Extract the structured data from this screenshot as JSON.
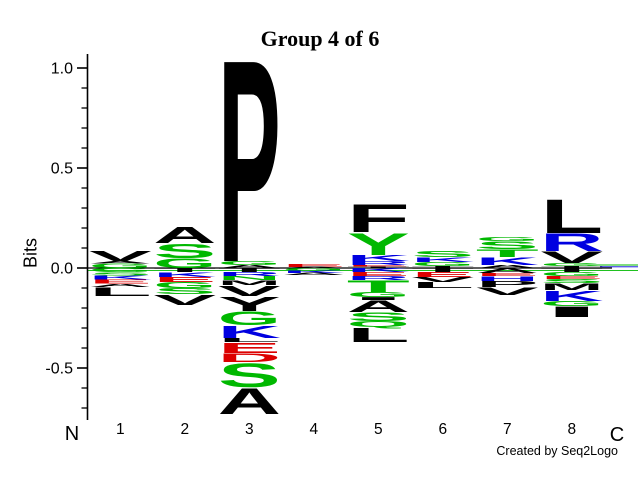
{
  "title": "Group 4 of 6",
  "credit": "Created by Seq2Logo",
  "axis": {
    "ylabel": "Bits",
    "n_label": "N",
    "c_label": "C"
  },
  "chart_data": {
    "type": "sequence-logo",
    "title": "Group 4 of 6",
    "ylabel": "Bits",
    "xlabel_left": "N",
    "xlabel_right": "C",
    "ylim": [
      -0.76,
      1.06
    ],
    "x_positions": [
      "1",
      "2",
      "3",
      "4",
      "5",
      "6",
      "7",
      "8"
    ],
    "yticks_major": [
      {
        "v": 1.0,
        "label": "1.0"
      },
      {
        "v": 0.5,
        "label": "0.5"
      },
      {
        "v": 0.0,
        "label": "0.0"
      },
      {
        "v": -0.5,
        "label": "-0.5"
      }
    ],
    "yticks_minor": [
      0.9,
      0.8,
      0.7,
      0.6,
      0.4,
      0.3,
      0.2,
      0.1,
      -0.1,
      -0.2,
      -0.3,
      -0.4,
      -0.6,
      -0.7
    ],
    "colors": {
      "k": "#000000",
      "g": "#00b800",
      "b": "#0000e0",
      "r": "#dc0000"
    },
    "letter_format": [
      "residue",
      "color_key",
      "height_bits"
    ],
    "positions": [
      {
        "position": "1",
        "above": [
          [
            "V",
            "k",
            0.055
          ],
          [
            "A",
            "k",
            0.012
          ],
          [
            "G",
            "g",
            0.022
          ]
        ],
        "below": [
          [
            "G",
            "g",
            0.02
          ],
          [
            "S",
            "g",
            0.018
          ],
          [
            "K",
            "b",
            0.02
          ],
          [
            "E",
            "r",
            0.02
          ],
          [
            "A",
            "k",
            0.018
          ],
          [
            "L",
            "k",
            0.044
          ]
        ]
      },
      {
        "position": "2",
        "above": [
          [
            "A",
            "k",
            0.085
          ],
          [
            "S",
            "g",
            0.075
          ],
          [
            "G",
            "g",
            0.05
          ]
        ],
        "below": [
          [
            "T",
            "k",
            0.02
          ],
          [
            "K",
            "b",
            0.025
          ],
          [
            "E",
            "r",
            0.025
          ],
          [
            "G",
            "g",
            0.03
          ],
          [
            "S",
            "g",
            0.03
          ],
          [
            "V",
            "k",
            0.055
          ]
        ]
      },
      {
        "position": "3",
        "above": [
          [
            "P",
            "k",
            1.055
          ],
          [
            "G",
            "g",
            0.02
          ],
          [
            "A",
            "k",
            0.015
          ]
        ],
        "below": [
          [
            "T",
            "k",
            0.02
          ],
          [
            "R",
            "b",
            0.02
          ],
          [
            "N",
            "g",
            0.02
          ],
          [
            "M",
            "k",
            0.025
          ],
          [
            "V",
            "k",
            0.055
          ],
          [
            "Y",
            "k",
            0.075
          ],
          [
            "G",
            "g",
            0.07
          ],
          [
            "K",
            "b",
            0.065
          ],
          [
            "L",
            "k",
            0.02
          ],
          [
            "E",
            "r",
            0.055
          ],
          [
            "D",
            "r",
            0.045
          ],
          [
            "S",
            "g",
            0.125
          ],
          [
            "A",
            "k",
            0.135
          ]
        ]
      },
      {
        "position": "4",
        "above": [
          [
            "E",
            "r",
            0.018
          ],
          [
            "A",
            "k",
            0.005
          ]
        ],
        "below": [
          [
            "G",
            "g",
            0.012
          ],
          [
            "K",
            "b",
            0.012
          ],
          [
            "A",
            "k",
            0.012
          ]
        ]
      },
      {
        "position": "5",
        "above": [
          [
            "F",
            "k",
            0.145
          ],
          [
            "Y",
            "g",
            0.115
          ],
          [
            "K",
            "b",
            0.03
          ],
          [
            "R",
            "b",
            0.02
          ],
          [
            "E",
            "r",
            0.008
          ],
          [
            "T",
            "k",
            0.007
          ]
        ],
        "below": [
          [
            "K",
            "b",
            0.02
          ],
          [
            "E",
            "r",
            0.02
          ],
          [
            "R",
            "b",
            0.02
          ],
          [
            "T",
            "g",
            0.06
          ],
          [
            "G",
            "g",
            0.025
          ],
          [
            "I",
            "k",
            0.015
          ],
          [
            "A",
            "k",
            0.06
          ],
          [
            "S",
            "g",
            0.045
          ],
          [
            "Q",
            "g",
            0.03
          ],
          [
            "L",
            "k",
            0.075
          ]
        ]
      },
      {
        "position": "6",
        "above": [
          [
            "S",
            "g",
            0.03
          ],
          [
            "K",
            "b",
            0.025
          ],
          [
            "G",
            "g",
            0.02
          ],
          [
            "T",
            "k",
            0.01
          ]
        ],
        "below": [
          [
            "T",
            "k",
            0.02
          ],
          [
            "E",
            "r",
            0.025
          ],
          [
            "V",
            "k",
            0.025
          ],
          [
            "L",
            "k",
            0.03
          ]
        ]
      },
      {
        "position": "7",
        "above": [
          [
            "G",
            "g",
            0.02
          ],
          [
            "S",
            "g",
            0.04
          ],
          [
            "T",
            "g",
            0.04
          ],
          [
            "K",
            "b",
            0.04
          ],
          [
            "A",
            "k",
            0.015
          ]
        ],
        "below": [
          [
            "A",
            "k",
            0.025
          ],
          [
            "E",
            "r",
            0.015
          ],
          [
            "H",
            "b",
            0.025
          ],
          [
            "P",
            "k",
            0.03
          ],
          [
            "V",
            "k",
            0.04
          ]
        ]
      },
      {
        "position": "8",
        "above": [
          [
            "L",
            "k",
            0.175
          ],
          [
            "R",
            "b",
            0.09
          ],
          [
            "V",
            "k",
            0.06
          ],
          [
            "G",
            "g",
            0.015
          ],
          [
            "T",
            "k",
            0.01
          ]
        ],
        "below": [
          [
            "T",
            "k",
            0.02
          ],
          [
            "G",
            "g",
            0.02
          ],
          [
            "E",
            "r",
            0.015
          ],
          [
            "S",
            "g",
            0.02
          ],
          [
            "M",
            "k",
            0.035
          ],
          [
            "K",
            "b",
            0.055
          ],
          [
            "G",
            "g",
            0.025
          ],
          [
            "I",
            "k",
            0.055
          ]
        ]
      }
    ]
  }
}
